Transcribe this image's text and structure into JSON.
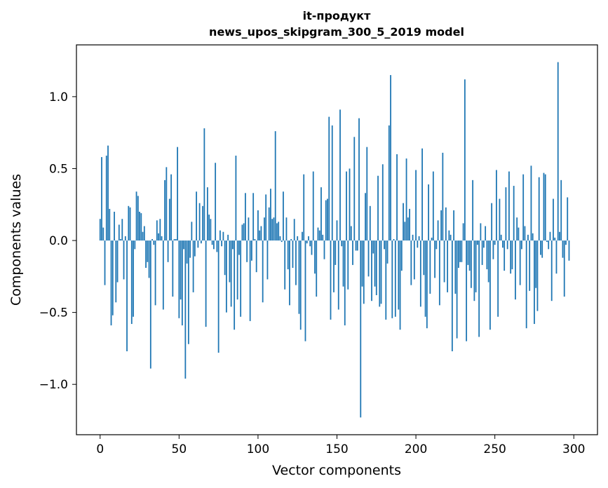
{
  "chart_data": {
    "type": "bar",
    "title": "it-продукт",
    "subtitle": "news_upos_skipgram_300_5_2019 model",
    "xlabel": "Vector components",
    "ylabel": "Components values",
    "xlim": [
      -15,
      315
    ],
    "ylim": [
      -1.35,
      1.36
    ],
    "x_ticks": [
      0,
      50,
      100,
      150,
      200,
      250,
      300
    ],
    "x_tick_labels": [
      "0",
      "50",
      "100",
      "150",
      "200",
      "250",
      "300"
    ],
    "y_ticks": [
      -1.0,
      -0.5,
      0.0,
      0.5,
      1.0
    ],
    "y_tick_labels": [
      "−1.0",
      "−0.5",
      "0.0",
      "0.5",
      "1.0"
    ],
    "grid": false,
    "bar_color": "#1f77b4",
    "x_start": 0,
    "values": [
      0.15,
      0.58,
      0.09,
      -0.31,
      0.59,
      0.66,
      0.22,
      -0.59,
      -0.52,
      0.2,
      -0.43,
      -0.29,
      0.11,
      0.01,
      0.15,
      -0.27,
      0.03,
      -0.77,
      0.24,
      0.23,
      -0.58,
      -0.53,
      -0.06,
      0.34,
      0.31,
      0.2,
      0.19,
      0.06,
      0.1,
      -0.19,
      -0.15,
      -0.26,
      -0.89,
      0.01,
      -0.03,
      -0.45,
      0.14,
      0.05,
      0.15,
      0.03,
      -0.48,
      0.42,
      0.51,
      -0.15,
      0.29,
      0.46,
      -0.39,
      0.01,
      0.01,
      0.65,
      -0.54,
      -0.41,
      -0.59,
      -0.06,
      -0.96,
      -0.16,
      -0.72,
      -0.12,
      0.13,
      -0.36,
      -0.11,
      0.34,
      -0.05,
      0.26,
      -0.02,
      0.24,
      0.78,
      -0.6,
      0.37,
      0.18,
      0.15,
      -0.03,
      -0.06,
      0.54,
      -0.08,
      -0.78,
      0.07,
      -0.04,
      0.06,
      -0.24,
      -0.5,
      0.04,
      -0.29,
      -0.46,
      -0.06,
      -0.62,
      0.59,
      -0.41,
      -0.1,
      -0.53,
      0.11,
      0.12,
      0.33,
      -0.15,
      0.16,
      -0.56,
      -0.14,
      0.33,
      0.01,
      -0.22,
      0.21,
      0.07,
      0.1,
      -0.43,
      0.16,
      0.32,
      -0.27,
      0.23,
      0.36,
      0.15,
      0.16,
      0.76,
      0.12,
      0.13,
      0.03,
      -0.01,
      0.34,
      -0.34,
      0.16,
      -0.2,
      -0.45,
      0.01,
      -0.19,
      0.15,
      -0.31,
      0.03,
      -0.51,
      -0.62,
      0.06,
      0.46,
      -0.7,
      -0.02,
      0.03,
      -0.04,
      -0.1,
      0.48,
      -0.23,
      -0.39,
      0.09,
      0.07,
      0.37,
      0.04,
      -0.13,
      0.28,
      0.29,
      0.86,
      -0.55,
      0.8,
      -0.36,
      -0.17,
      0.14,
      -0.48,
      0.91,
      -0.04,
      -0.32,
      -0.59,
      0.48,
      -0.34,
      0.5,
      0.1,
      -0.17,
      0.72,
      -0.07,
      -0.07,
      0.85,
      -1.23,
      -0.32,
      -0.44,
      0.33,
      0.65,
      -0.25,
      0.24,
      -0.42,
      -0.09,
      -0.32,
      -0.38,
      0.45,
      -0.46,
      -0.44,
      0.53,
      -0.06,
      -0.55,
      -0.16,
      0.8,
      1.15,
      -0.54,
      0.01,
      -0.53,
      0.6,
      -0.48,
      -0.62,
      -0.21,
      0.26,
      0.13,
      0.57,
      0.16,
      0.22,
      -0.31,
      0.04,
      -0.27,
      0.49,
      -0.05,
      0.03,
      -0.46,
      0.64,
      -0.24,
      -0.53,
      -0.61,
      0.39,
      -0.37,
      0.02,
      0.48,
      -0.26,
      -0.06,
      0.14,
      -0.45,
      0.21,
      0.61,
      -0.29,
      0.23,
      -0.36,
      0.07,
      0.04,
      -0.77,
      0.21,
      -0.37,
      -0.68,
      -0.19,
      -0.15,
      -0.15,
      0.12,
      1.12,
      -0.7,
      -0.17,
      -0.21,
      -0.33,
      0.42,
      -0.42,
      -0.36,
      -0.03,
      -0.67,
      0.12,
      -0.17,
      -0.05,
      0.1,
      -0.2,
      -0.29,
      -0.62,
      0.26,
      -0.13,
      -0.03,
      0.49,
      -0.53,
      0.29,
      0.04,
      -0.05,
      -0.21,
      0.37,
      -0.06,
      0.48,
      -0.23,
      -0.2,
      0.38,
      -0.41,
      0.16,
      0.09,
      -0.31,
      -0.06,
      0.46,
      0.1,
      -0.61,
      0.04,
      -0.35,
      0.52,
      0.05,
      -0.58,
      -0.33,
      -0.49,
      0.44,
      -0.1,
      -0.12,
      0.47,
      0.46,
      -0.01,
      -0.06,
      0.06,
      -0.42,
      0.29,
      0.02,
      -0.23,
      1.24,
      0.06,
      0.42,
      -0.12,
      -0.39,
      -0.03,
      0.3,
      -0.14
    ]
  }
}
